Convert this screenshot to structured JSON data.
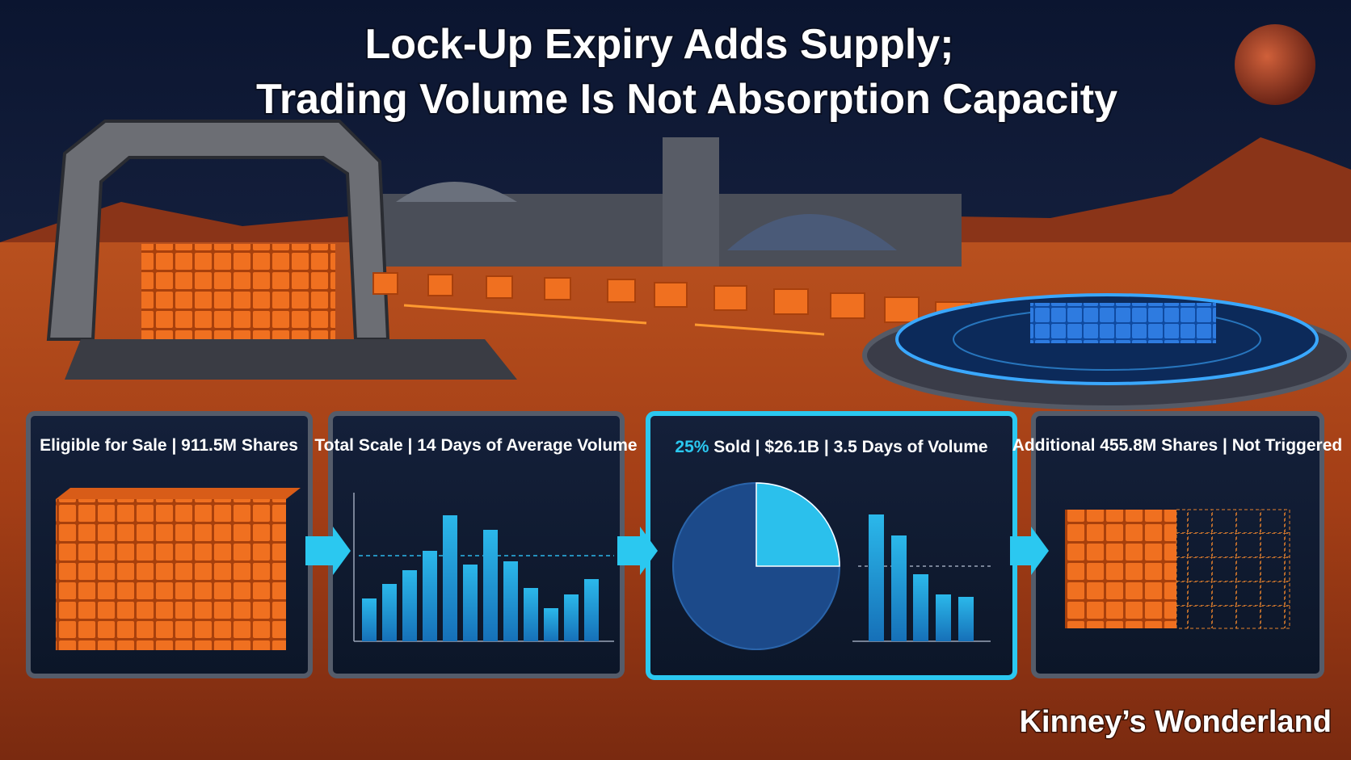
{
  "header": {
    "title_lines": [
      "Lock-Up Expiry Adds Supply;",
      "Trading Volume Is Not Absorption Capacity"
    ]
  },
  "panels": [
    {
      "label": "Eligible for Sale | 911.5M Shares"
    },
    {
      "label": "Total Scale | 14 Days of Average Volume"
    },
    {
      "highlight": "25%",
      "label": "Sold | $26.1B | 3.5 Days of Volume"
    },
    {
      "label": "Additional 455.8M Shares | Not Triggered"
    }
  ],
  "watermark": "Kinney’s Wonderland"
}
